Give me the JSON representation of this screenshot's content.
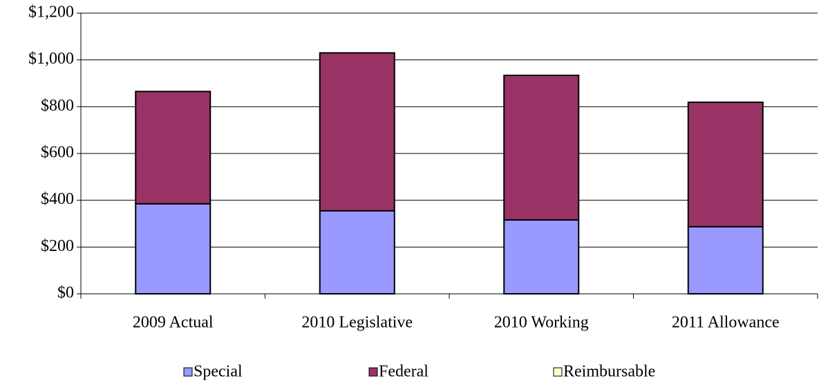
{
  "chart_data": {
    "type": "stacked-bar",
    "categories": [
      "2009 Actual",
      "2010 Legislative",
      "2010 Working",
      "2011 Allowance"
    ],
    "series": [
      {
        "name": "Special",
        "color": "#9999ff",
        "values": [
          385,
          355,
          316,
          287
        ]
      },
      {
        "name": "Federal",
        "color": "#993366",
        "values": [
          480,
          675,
          618,
          532
        ]
      },
      {
        "name": "Reimbursable",
        "color": "#ffffcc",
        "values": [
          0,
          0,
          0,
          0
        ]
      }
    ],
    "ylim": [
      0,
      1200
    ],
    "yticks": [
      {
        "value": 0,
        "label": "$0"
      },
      {
        "value": 200,
        "label": "$200"
      },
      {
        "value": 400,
        "label": "$400"
      },
      {
        "value": 600,
        "label": "$600"
      },
      {
        "value": 800,
        "label": "$800"
      },
      {
        "value": 1000,
        "label": "$1,000"
      },
      {
        "value": 1200,
        "label": "$1,200"
      }
    ],
    "grid": true,
    "legend": "bottom"
  }
}
